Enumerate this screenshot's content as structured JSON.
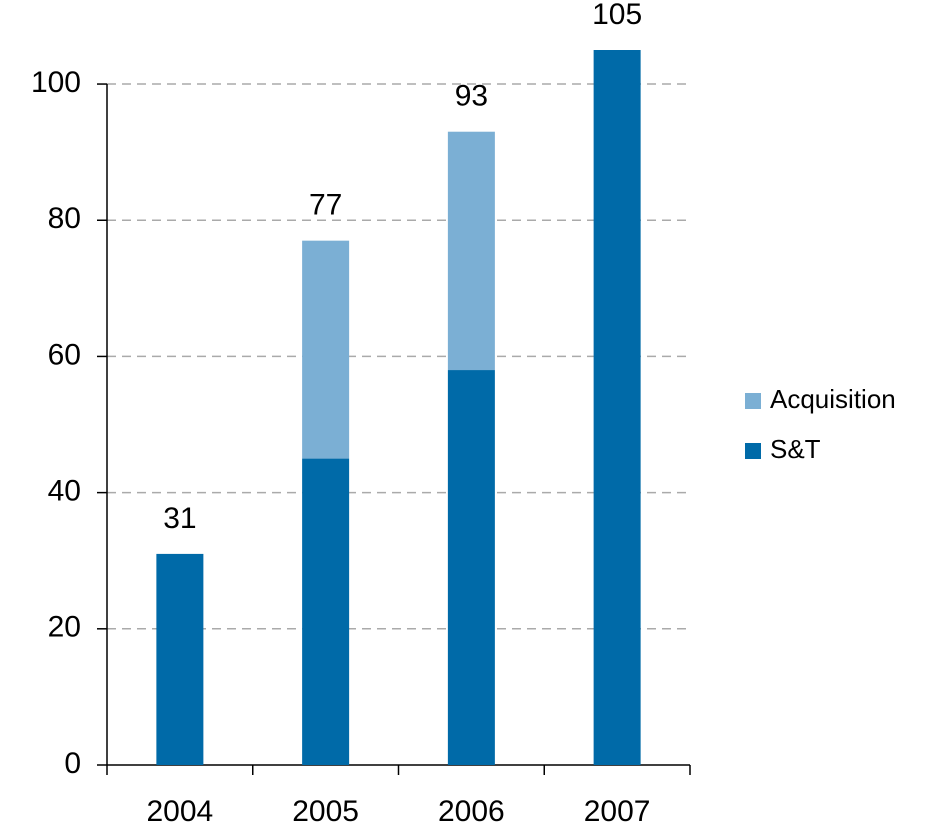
{
  "chart_data": {
    "type": "stacked_bar",
    "categories": [
      "2004",
      "2005",
      "2006",
      "2007"
    ],
    "series": [
      {
        "name": "S&T",
        "color": "#006aa8",
        "values": [
          31,
          45,
          58,
          105
        ]
      },
      {
        "name": "Acquisition",
        "color": "#7bafd4",
        "values": [
          null,
          32,
          35,
          null
        ]
      }
    ],
    "totals": [
      31,
      77,
      93,
      105
    ],
    "ylim": [
      0,
      105
    ],
    "yticks": [
      0,
      20,
      40,
      60,
      80,
      100
    ],
    "grid": true,
    "legend": "right"
  }
}
